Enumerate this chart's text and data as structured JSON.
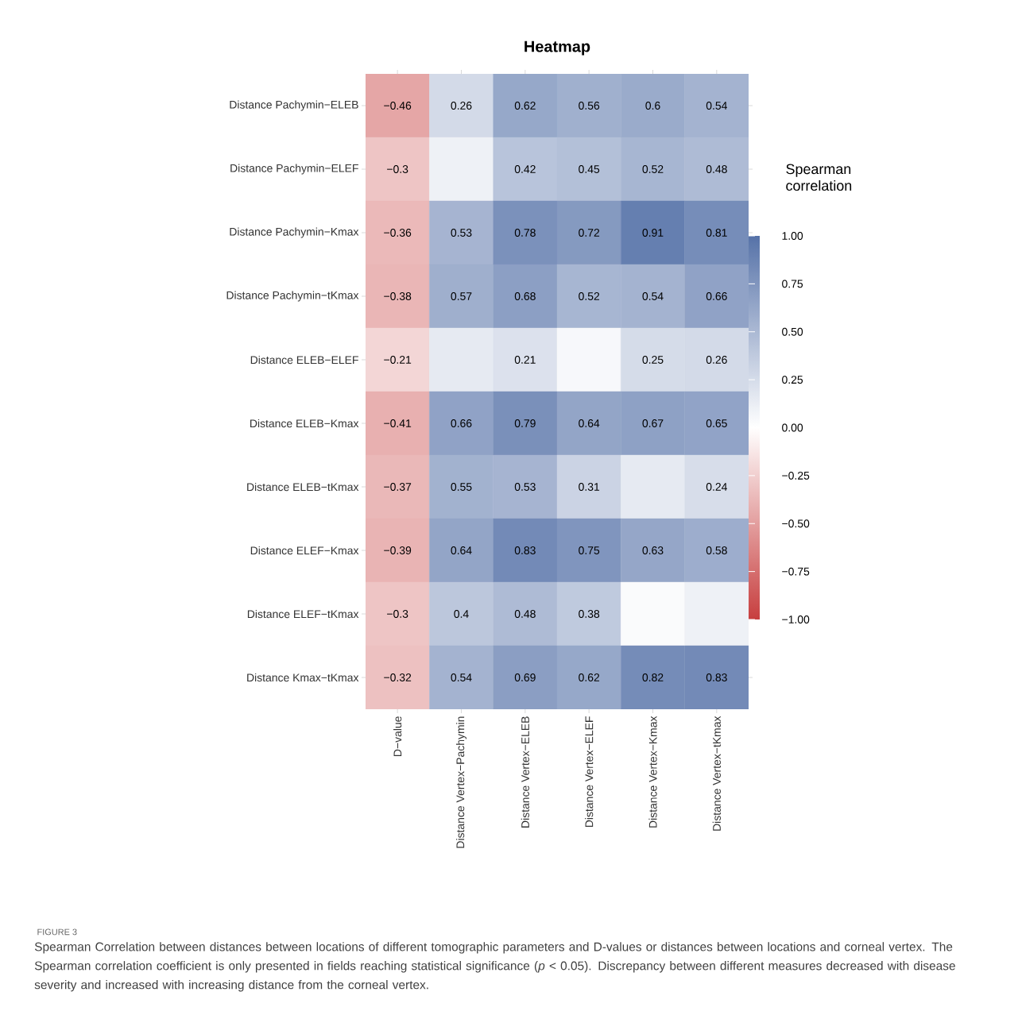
{
  "chart_data": {
    "type": "heatmap",
    "title": "Heatmap",
    "clabel": "Spearman correlation",
    "categories": [
      "D−value",
      "Distance Vertex−Pachymin",
      "Distance Vertex−ELEB",
      "Distance Vertex−ELEF",
      "Distance Vertex−Kmax",
      "Distance Vertex−tKmax"
    ],
    "y_categories": [
      "Distance Pachymin−ELEB",
      "Distance Pachymin−ELEF",
      "Distance Pachymin−Kmax",
      "Distance Pachymin−tKmax",
      "Distance ELEB−ELEF",
      "Distance ELEB−Kmax",
      "Distance ELEB−tKmax",
      "Distance ELEF−Kmax",
      "Distance ELEF−tKmax",
      "Distance Kmax−tKmax"
    ],
    "cells": [
      [
        -0.46,
        0.26,
        0.62,
        0.56,
        0.6,
        0.54
      ],
      [
        -0.3,
        0.1,
        0.42,
        0.45,
        0.52,
        0.48
      ],
      [
        -0.36,
        0.53,
        0.78,
        0.72,
        0.91,
        0.81
      ],
      [
        -0.38,
        0.57,
        0.68,
        0.52,
        0.54,
        0.66
      ],
      [
        -0.21,
        0.15,
        0.21,
        0.05,
        0.25,
        0.26
      ],
      [
        -0.41,
        0.66,
        0.79,
        0.64,
        0.67,
        0.65
      ],
      [
        -0.37,
        0.55,
        0.53,
        0.31,
        0.15,
        0.24
      ],
      [
        -0.39,
        0.64,
        0.83,
        0.75,
        0.63,
        0.58
      ],
      [
        -0.3,
        0.4,
        0.48,
        0.38,
        0.03,
        0.1
      ],
      [
        -0.32,
        0.54,
        0.69,
        0.62,
        0.82,
        0.83
      ]
    ],
    "cell_labels": [
      [
        "−0.46",
        "0.26",
        "0.62",
        "0.56",
        "0.6",
        "0.54"
      ],
      [
        "−0.3",
        null,
        "0.42",
        "0.45",
        "0.52",
        "0.48"
      ],
      [
        "−0.36",
        "0.53",
        "0.78",
        "0.72",
        "0.91",
        "0.81"
      ],
      [
        "−0.38",
        "0.57",
        "0.68",
        "0.52",
        "0.54",
        "0.66"
      ],
      [
        "−0.21",
        null,
        "0.21",
        null,
        "0.25",
        "0.26"
      ],
      [
        "−0.41",
        "0.66",
        "0.79",
        "0.64",
        "0.67",
        "0.65"
      ],
      [
        "−0.37",
        "0.55",
        "0.53",
        "0.31",
        null,
        "0.24"
      ],
      [
        "−0.39",
        "0.64",
        "0.83",
        "0.75",
        "0.63",
        "0.58"
      ],
      [
        "−0.3",
        "0.4",
        "0.48",
        "0.38",
        null,
        null
      ],
      [
        "−0.32",
        "0.54",
        "0.69",
        "0.62",
        "0.82",
        "0.83"
      ]
    ],
    "clim": [
      -1,
      1
    ],
    "cticks": [
      {
        "value": 1,
        "label": "1.00"
      },
      {
        "value": 0.75,
        "label": "0.75"
      },
      {
        "value": 0.5,
        "label": "0.50"
      },
      {
        "value": 0.25,
        "label": "0.25"
      },
      {
        "value": 0,
        "label": "0.00"
      },
      {
        "value": -0.25,
        "label": "−0.25"
      },
      {
        "value": -0.5,
        "label": "−0.50"
      },
      {
        "value": -0.75,
        "label": "−0.75"
      },
      {
        "value": -1,
        "label": "−1.00"
      }
    ],
    "annotations": [
      "FIGURE 3",
      "Spearman Correlation between distances between locations of different tomographic parameters and D-values or distances between locations and corneal vertex. The Spearman correlation coefficient is only presented in fields reaching statistical significance (*p* < 0.05). Discrepancy between different measures decreased with disease severity and increased with increasing distance from the corneal vertex."
    ]
  }
}
